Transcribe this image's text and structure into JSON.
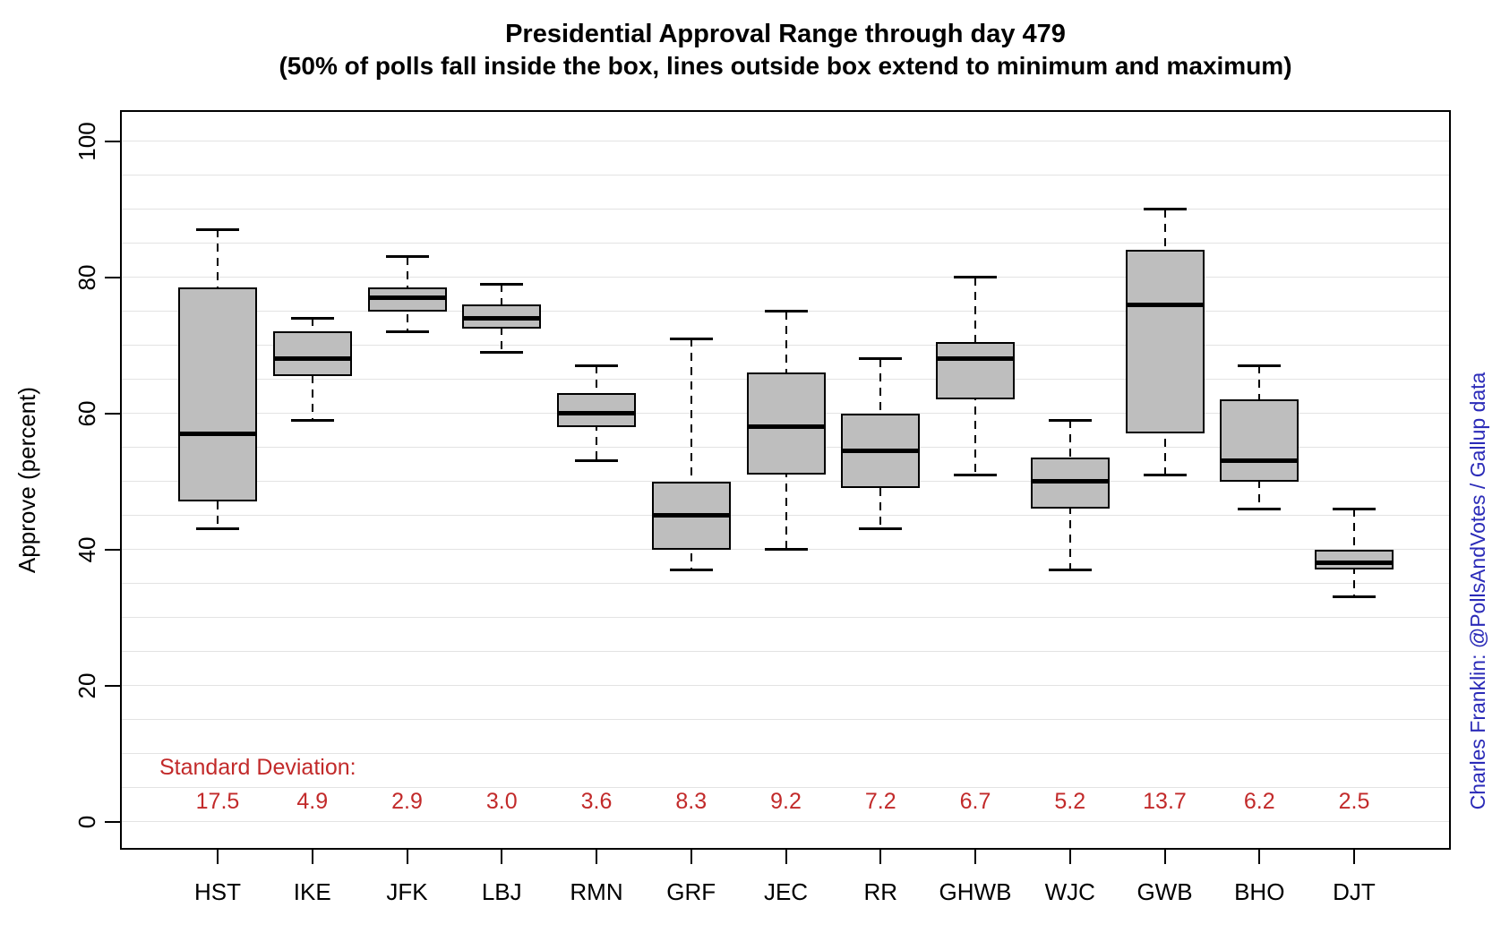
{
  "title": "Presidential Approval Range through day 479",
  "subtitle": "(50% of polls fall inside the box, lines outside box extend to minimum and maximum)",
  "attribution": "Charles Franklin: @PollsAndVotes / Gallup data",
  "colors": {
    "box_fill": "#BEBEBE",
    "box_border": "#000000",
    "median": "#000000",
    "gridline": "#E3E3E3",
    "axis": "#000000",
    "sd_text": "#C22A2A",
    "attribution_text": "#2B2BB8",
    "background": "#FFFFFF"
  },
  "chart_data": {
    "type": "boxplot",
    "title": "Presidential Approval Range through day 479",
    "subtitle": "(50% of polls fall inside the box, lines outside box extend to minimum and maximum)",
    "xlabel": "",
    "ylabel": "Approve (percent)",
    "ylim": [
      0,
      100
    ],
    "y_major_ticks": [
      0,
      20,
      40,
      60,
      80,
      100
    ],
    "gridline_step": 5,
    "grid": "horizontal light gray every 5 units",
    "legend_position": "none",
    "categories": [
      "HST",
      "IKE",
      "JFK",
      "LBJ",
      "RMN",
      "GRF",
      "JEC",
      "RR",
      "GHWB",
      "WJC",
      "GWB",
      "BHO",
      "DJT"
    ],
    "series": [
      {
        "label": "HST",
        "min": 43,
        "q1": 47,
        "median": 57,
        "q3": 78.5,
        "max": 87,
        "sd": "17.5"
      },
      {
        "label": "IKE",
        "min": 59,
        "q1": 65.5,
        "median": 68,
        "q3": 72,
        "max": 74,
        "sd": "4.9"
      },
      {
        "label": "JFK",
        "min": 72,
        "q1": 75,
        "median": 77,
        "q3": 78.5,
        "max": 83,
        "sd": "2.9"
      },
      {
        "label": "LBJ",
        "min": 69,
        "q1": 72.5,
        "median": 74,
        "q3": 76,
        "max": 79,
        "sd": "3.0"
      },
      {
        "label": "RMN",
        "min": 53,
        "q1": 58,
        "median": 60,
        "q3": 63,
        "max": 67,
        "sd": "3.6"
      },
      {
        "label": "GRF",
        "min": 37,
        "q1": 40,
        "median": 45,
        "q3": 50,
        "max": 71,
        "sd": "8.3"
      },
      {
        "label": "JEC",
        "min": 40,
        "q1": 51,
        "median": 58,
        "q3": 66,
        "max": 75,
        "sd": "9.2"
      },
      {
        "label": "RR",
        "min": 43,
        "q1": 49,
        "median": 54.5,
        "q3": 60,
        "max": 68,
        "sd": "7.2"
      },
      {
        "label": "GHWB",
        "min": 51,
        "q1": 62,
        "median": 68,
        "q3": 70.5,
        "max": 80,
        "sd": "6.7"
      },
      {
        "label": "WJC",
        "min": 37,
        "q1": 46,
        "median": 50,
        "q3": 53.5,
        "max": 59,
        "sd": "5.2"
      },
      {
        "label": "GWB",
        "min": 51,
        "q1": 57,
        "median": 76,
        "q3": 84,
        "max": 90,
        "sd": "13.7"
      },
      {
        "label": "BHO",
        "min": 46,
        "q1": 50,
        "median": 53,
        "q3": 62,
        "max": 67,
        "sd": "6.2"
      },
      {
        "label": "DJT",
        "min": 33,
        "q1": 37,
        "median": 38,
        "q3": 40,
        "max": 46,
        "sd": "2.5"
      }
    ],
    "annotations": {
      "sd_row_label": "Standard Deviation:",
      "sd_values": [
        "17.5",
        "4.9",
        "2.9",
        "3.0",
        "3.6",
        "8.3",
        "9.2",
        "7.2",
        "6.7",
        "5.2",
        "13.7",
        "6.2",
        "2.5"
      ]
    }
  },
  "sd_row": {
    "label": "Standard Deviation:"
  },
  "y_axis": {
    "label": "Approve (percent)"
  }
}
